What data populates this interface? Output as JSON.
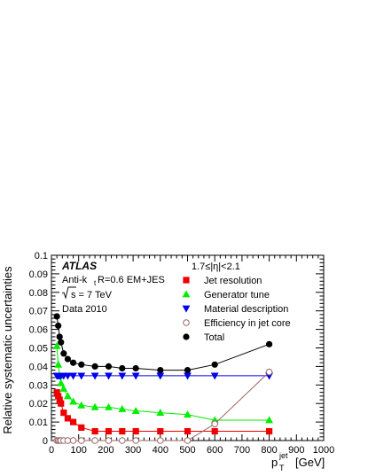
{
  "chart_data": {
    "type": "line",
    "title": "",
    "xlabel": "p",
    "xlabel_sup": "jet",
    "xlabel_sub": "T",
    "xlabel_unit": "[GeV]",
    "ylabel": "Relative systematic uncertainties",
    "xlim": [
      0,
      1000
    ],
    "ylim": [
      0,
      0.1
    ],
    "x_ticks": [
      0,
      100,
      200,
      300,
      400,
      500,
      600,
      700,
      800,
      900,
      1000
    ],
    "y_ticks": [
      0,
      0.01,
      0.02,
      0.03,
      0.04,
      0.05,
      0.06,
      0.07,
      0.08,
      0.09,
      0.1
    ],
    "x_tick_labels": [
      "0",
      "100",
      "200",
      "300",
      "400",
      "500",
      "600",
      "700",
      "800",
      "900",
      "1000"
    ],
    "y_tick_labels": [
      "0",
      "0.01",
      "0.02",
      "0.03",
      "0.04",
      "0.05",
      "0.06",
      "0.07",
      "0.08",
      "0.09",
      "0.1"
    ],
    "grid": false,
    "legend_position": "top-right",
    "annotations": {
      "experiment": "ATLAS",
      "algo_prefix": "Anti-k",
      "algo_sub": "t",
      "algo_suffix": " R=0.6 EM+JES",
      "energy": "s = 7 TeV",
      "data": "Data 2010",
      "eta_range": "1.7≤|η|<2.1"
    },
    "series": [
      {
        "name": "Jet resolution",
        "color": "#ee0000",
        "marker": "square",
        "x": [
          20,
          25,
          30,
          35,
          45,
          60,
          80,
          110,
          160,
          210,
          260,
          310,
          400,
          500,
          600,
          800
        ],
        "y": [
          0.026,
          0.024,
          0.022,
          0.02,
          0.015,
          0.012,
          0.01,
          0.007,
          0.005,
          0.005,
          0.005,
          0.005,
          0.005,
          0.005,
          0.005,
          0.005
        ]
      },
      {
        "name": "Generator tune",
        "color": "#00ee00",
        "marker": "triangle-up",
        "x": [
          20,
          25,
          30,
          35,
          45,
          60,
          80,
          110,
          160,
          210,
          260,
          310,
          400,
          500,
          600,
          800
        ],
        "y": [
          0.051,
          0.041,
          0.035,
          0.031,
          0.028,
          0.024,
          0.021,
          0.019,
          0.018,
          0.018,
          0.017,
          0.016,
          0.015,
          0.014,
          0.011,
          0.011
        ]
      },
      {
        "name": "Material description",
        "color": "#0000ee",
        "marker": "triangle-down",
        "x": [
          20,
          25,
          30,
          35,
          45,
          60,
          80,
          110,
          160,
          210,
          260,
          310,
          400,
          500,
          600,
          800
        ],
        "y": [
          0.035,
          0.035,
          0.035,
          0.035,
          0.035,
          0.035,
          0.035,
          0.035,
          0.035,
          0.035,
          0.035,
          0.035,
          0.035,
          0.035,
          0.035,
          0.035
        ]
      },
      {
        "name": "Efficiency in jet core",
        "color": "#996666",
        "marker": "open-circle",
        "x": [
          20,
          25,
          30,
          35,
          45,
          60,
          80,
          110,
          160,
          210,
          260,
          310,
          400,
          500,
          600,
          800
        ],
        "y": [
          0.0,
          0.0,
          0.0,
          0.0,
          0.0,
          0.0,
          0.0,
          0.0,
          0.0,
          0.0,
          0.0,
          0.0,
          0.0,
          0.0,
          0.009,
          0.037
        ]
      },
      {
        "name": "Total",
        "color": "#000000",
        "marker": "filled-circle",
        "x": [
          20,
          25,
          30,
          35,
          45,
          60,
          80,
          110,
          160,
          210,
          260,
          310,
          400,
          500,
          600,
          800
        ],
        "y": [
          0.067,
          0.062,
          0.056,
          0.053,
          0.047,
          0.044,
          0.042,
          0.041,
          0.04,
          0.04,
          0.039,
          0.039,
          0.038,
          0.038,
          0.041,
          0.052
        ]
      }
    ]
  }
}
